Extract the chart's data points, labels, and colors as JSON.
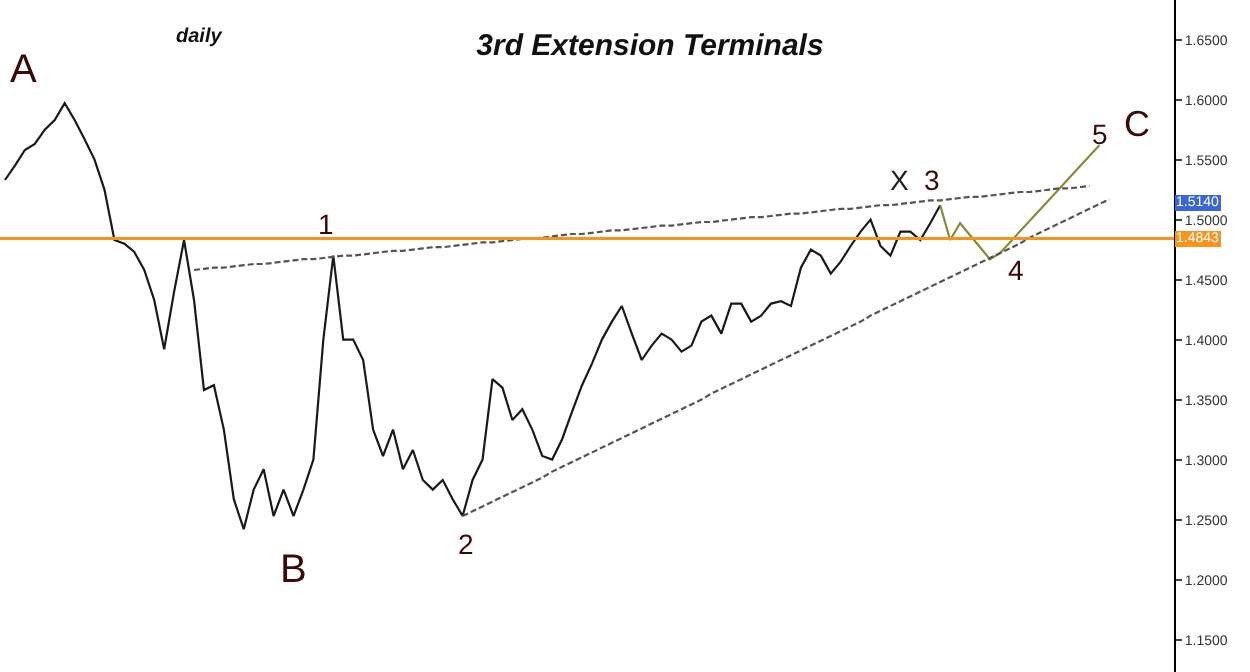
{
  "chart_data": {
    "type": "line",
    "title": "3rd Extension Terminals",
    "ylim": [
      1.123,
      1.683
    ],
    "categories": [
      null,
      null,
      null,
      null,
      null,
      null,
      null,
      null,
      null,
      null,
      null,
      null,
      null,
      null,
      null,
      null,
      null,
      null,
      null,
      null,
      null,
      null,
      null,
      null,
      null,
      null,
      null,
      null,
      null,
      null,
      null,
      null,
      null,
      null,
      null,
      null,
      null,
      null,
      null,
      null,
      null,
      null,
      null,
      null,
      null,
      null,
      null,
      null,
      null,
      null,
      null,
      null,
      null,
      null,
      null,
      null,
      null,
      null,
      null,
      null,
      null,
      null,
      null,
      null,
      null,
      null,
      null,
      null,
      null,
      null,
      null,
      null,
      null,
      null,
      null,
      null,
      null,
      null,
      null,
      null,
      null,
      null,
      null,
      null,
      null,
      null,
      null,
      null,
      null,
      null,
      null,
      null,
      null,
      null,
      null,
      null,
      null,
      null,
      null,
      null,
      null,
      null,
      null,
      null,
      null,
      null,
      null,
      null,
      null,
      null,
      null,
      null,
      null,
      null,
      null,
      null,
      null,
      null
    ],
    "yticks": [
      {
        "value": 1.15,
        "label": "1.1500"
      },
      {
        "value": 1.2,
        "label": "1.2000"
      },
      {
        "value": 1.25,
        "label": "1.2500"
      },
      {
        "value": 1.3,
        "label": "1.3000"
      },
      {
        "value": 1.35,
        "label": "1.3500"
      },
      {
        "value": 1.4,
        "label": "1.4000"
      },
      {
        "value": 1.45,
        "label": "1.4500"
      },
      {
        "value": 1.5,
        "label": "1.5000"
      },
      {
        "value": 1.55,
        "label": "1.5500"
      },
      {
        "value": 1.6,
        "label": "1.6000"
      },
      {
        "value": 1.65,
        "label": "1.6500"
      }
    ],
    "tick_labels": "y",
    "marker": "none",
    "series": [
      {
        "color": "#1a1a1a",
        "line_style": "solid",
        "values": [
          1.533,
          1.545,
          1.558,
          1.563,
          1.575,
          1.583,
          1.597,
          1.583,
          1.567,
          1.55,
          1.525,
          1.483,
          1.48,
          1.473,
          1.458,
          1.433,
          1.392,
          1.44,
          1.483,
          1.433,
          1.358,
          1.362,
          1.325,
          1.267,
          1.242,
          1.275,
          1.292,
          1.253,
          1.275,
          1.253,
          1.275,
          1.3,
          1.4,
          1.47,
          1.4,
          1.4,
          1.383,
          1.325,
          1.303,
          1.325,
          1.292,
          1.308,
          1.283,
          1.275,
          1.283,
          1.267,
          1.253,
          1.283,
          1.3,
          1.367,
          1.36,
          1.333,
          1.342,
          1.325,
          1.303,
          1.3,
          1.317,
          1.34,
          1.362,
          1.38,
          1.4,
          1.415,
          1.428,
          1.405,
          1.383,
          1.395,
          1.405,
          1.4,
          1.39,
          1.395,
          1.415,
          1.42,
          1.405,
          1.43,
          1.43,
          1.415,
          1.42,
          1.43,
          1.432,
          1.428,
          1.46,
          1.475,
          1.47,
          1.455,
          1.465,
          1.478,
          1.49,
          1.5,
          1.478,
          1.47,
          1.49,
          1.49,
          1.483,
          1.497,
          1.512,
          null,
          null,
          null,
          null,
          null,
          null,
          null,
          null,
          null,
          null,
          null,
          null,
          null,
          null,
          null,
          null,
          null,
          null,
          null,
          null,
          null,
          null,
          null
        ]
      },
      {
        "color": "#8a8a3a",
        "line_style": "solid",
        "values": [
          null,
          null,
          null,
          null,
          null,
          null,
          null,
          null,
          null,
          null,
          null,
          null,
          null,
          null,
          null,
          null,
          null,
          null,
          null,
          null,
          null,
          null,
          null,
          null,
          null,
          null,
          null,
          null,
          null,
          null,
          null,
          null,
          null,
          null,
          null,
          null,
          null,
          null,
          null,
          null,
          null,
          null,
          null,
          null,
          null,
          null,
          null,
          null,
          null,
          null,
          null,
          null,
          null,
          null,
          null,
          null,
          null,
          null,
          null,
          null,
          null,
          null,
          null,
          null,
          null,
          null,
          null,
          null,
          null,
          null,
          null,
          null,
          null,
          null,
          null,
          null,
          null,
          null,
          null,
          null,
          null,
          null,
          null,
          null,
          null,
          null,
          null,
          null,
          null,
          null,
          null,
          null,
          null,
          null,
          1.512,
          1.483,
          1.497,
          1.487,
          1.477,
          1.467,
          1.472,
          1.481,
          1.49,
          1.499,
          1.508,
          1.517,
          1.526,
          1.535,
          1.544,
          1.553,
          1.562,
          null,
          null,
          null,
          null,
          null,
          null,
          null
        ]
      },
      {
        "color": "#555555",
        "line_style": "dashed",
        "values": [
          null,
          null,
          null,
          null,
          null,
          null,
          null,
          null,
          null,
          null,
          null,
          null,
          null,
          null,
          null,
          null,
          null,
          null,
          null,
          1.458,
          1.459,
          1.46,
          1.46,
          1.461,
          1.462,
          1.463,
          1.463,
          1.464,
          1.465,
          1.466,
          1.467,
          1.467,
          1.468,
          1.469,
          1.47,
          1.47,
          1.471,
          1.472,
          1.473,
          1.474,
          1.474,
          1.475,
          1.476,
          1.477,
          1.477,
          1.478,
          1.479,
          1.48,
          1.481,
          1.481,
          1.482,
          1.483,
          1.484,
          1.484,
          1.485,
          1.486,
          1.487,
          1.488,
          1.488,
          1.489,
          1.49,
          1.491,
          1.491,
          1.492,
          1.493,
          1.494,
          1.495,
          1.495,
          1.496,
          1.497,
          1.498,
          1.498,
          1.499,
          1.5,
          1.501,
          1.502,
          1.502,
          1.503,
          1.504,
          1.505,
          1.505,
          1.506,
          1.507,
          1.508,
          1.509,
          1.509,
          1.51,
          1.511,
          1.512,
          1.512,
          1.513,
          1.514,
          1.515,
          1.516,
          1.516,
          1.517,
          1.518,
          1.519,
          1.519,
          1.52,
          1.521,
          1.522,
          1.523,
          1.523,
          1.524,
          1.525,
          1.526,
          1.526,
          1.527,
          1.528,
          null,
          null,
          null,
          null,
          null,
          null,
          null,
          null
        ]
      },
      {
        "color": "#555555",
        "line_style": "dashed",
        "values": [
          null,
          null,
          null,
          null,
          null,
          null,
          null,
          null,
          null,
          null,
          null,
          null,
          null,
          null,
          null,
          null,
          null,
          null,
          null,
          null,
          null,
          null,
          null,
          null,
          null,
          null,
          null,
          null,
          null,
          null,
          null,
          null,
          null,
          null,
          null,
          null,
          null,
          null,
          null,
          null,
          null,
          null,
          null,
          null,
          null,
          null,
          1.253,
          1.257,
          1.261,
          1.265,
          1.269,
          1.273,
          1.277,
          1.281,
          1.285,
          1.29,
          1.294,
          1.298,
          1.302,
          1.306,
          1.31,
          1.314,
          1.318,
          1.322,
          1.326,
          1.33,
          1.334,
          1.338,
          1.342,
          1.346,
          1.35,
          1.355,
          1.359,
          1.363,
          1.367,
          1.371,
          1.375,
          1.379,
          1.383,
          1.387,
          1.391,
          1.395,
          1.399,
          1.403,
          1.407,
          1.411,
          1.415,
          1.42,
          1.424,
          1.428,
          1.432,
          1.436,
          1.44,
          1.444,
          1.448,
          1.452,
          1.456,
          1.46,
          1.464,
          1.468,
          1.472,
          1.476,
          1.48,
          1.485,
          1.489,
          1.493,
          1.497,
          1.501,
          1.505,
          1.509,
          1.513,
          1.517,
          null,
          null,
          null,
          null,
          null,
          null
        ]
      }
    ],
    "ref_lines": [
      {
        "axis": "y",
        "value": 1.4843,
        "label": "1.4843",
        "color": "#f7931e",
        "line_style": "solid"
      }
    ],
    "annotations": [
      "daily",
      "A",
      "1",
      "B",
      "2",
      "X",
      "3",
      "4",
      "5",
      "C",
      "1.5140"
    ]
  }
}
